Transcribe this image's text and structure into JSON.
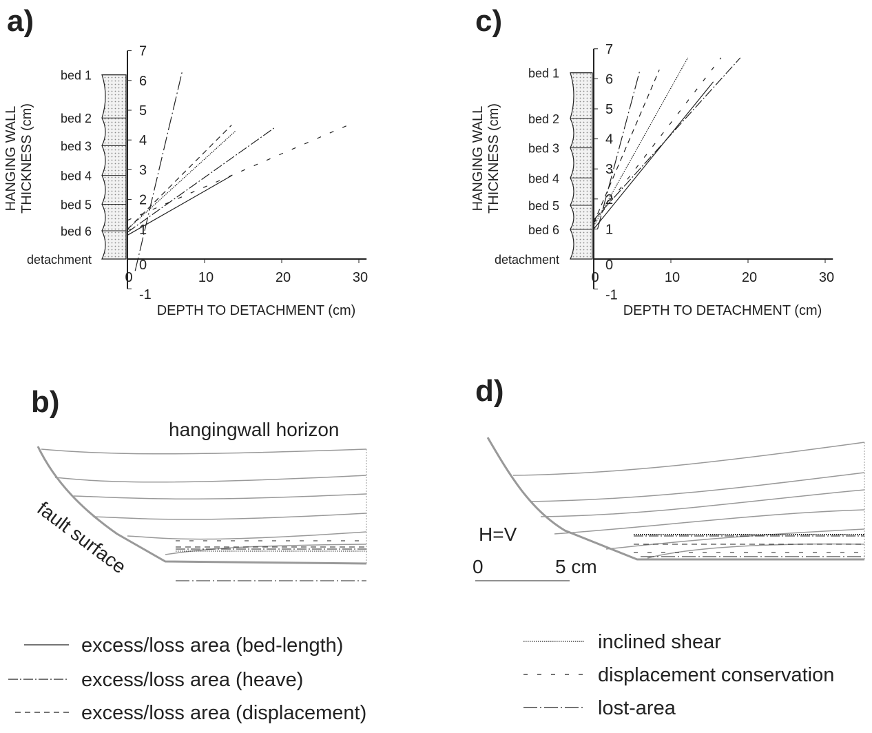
{
  "chart_data": [
    {
      "type": "line",
      "panel": "a)",
      "ylabel": [
        "HANGING WALL",
        "THICKNESS (cm)"
      ],
      "xlabel": "DEPTH TO DETACHMENT (cm)",
      "xlim": [
        0,
        31
      ],
      "ylim": [
        -1,
        7
      ],
      "xticks": [
        0,
        10,
        20,
        30
      ],
      "yticks": [
        -1,
        0,
        1,
        2,
        3,
        4,
        5,
        6,
        7
      ],
      "beds": [
        {
          "label": "bed 1",
          "value": 6.19
        },
        {
          "label": "bed 2",
          "value": 4.74
        },
        {
          "label": "bed 3",
          "value": 3.81
        },
        {
          "label": "bed 4",
          "value": 2.81
        },
        {
          "label": "bed 5",
          "value": 1.84
        },
        {
          "label": "bed 6",
          "value": 0.95
        },
        {
          "label": "detachment",
          "value": 0
        }
      ],
      "series": [
        {
          "style": "long-dash-dot",
          "x": [
            1,
            7.1
          ],
          "values": [
            -0.4,
            6.3
          ]
        },
        {
          "style": "dashed",
          "x": [
            0,
            13.5
          ],
          "values": [
            1.0,
            4.5
          ]
        },
        {
          "style": "dotted",
          "x": [
            0,
            14
          ],
          "values": [
            1.0,
            4.3
          ]
        },
        {
          "style": "dash-dot",
          "x": [
            0,
            19
          ],
          "values": [
            0.9,
            4.4
          ]
        },
        {
          "style": "sparse-dash",
          "x": [
            0,
            29.5
          ],
          "values": [
            1.3,
            4.6
          ]
        },
        {
          "style": "solid",
          "x": [
            0,
            13.5
          ],
          "values": [
            0.8,
            2.8
          ]
        }
      ]
    },
    {
      "type": "line",
      "panel": "c)",
      "ylabel": [
        "HANGING WALL",
        "THICKNESS (cm)"
      ],
      "xlabel": "DEPTH TO DETACHMENT (cm)",
      "xlim": [
        0,
        31
      ],
      "ylim": [
        -1,
        7
      ],
      "xticks": [
        0,
        10,
        20,
        30
      ],
      "yticks": [
        -1,
        0,
        1,
        2,
        3,
        4,
        5,
        6,
        7
      ],
      "beds": [
        {
          "label": "bed 1",
          "value": 6.2
        },
        {
          "label": "bed 2",
          "value": 4.68
        },
        {
          "label": "bed 3",
          "value": 3.7
        },
        {
          "label": "bed 4",
          "value": 2.7
        },
        {
          "label": "bed 5",
          "value": 1.79
        },
        {
          "label": "bed 6",
          "value": 0.99
        },
        {
          "label": "detachment",
          "value": 0
        }
      ],
      "series": [
        {
          "style": "long-dash-dot",
          "x": [
            0.5,
            6
          ],
          "values": [
            1.0,
            6.3
          ]
        },
        {
          "style": "dashed",
          "x": [
            0,
            8.5
          ],
          "values": [
            1.2,
            6.3
          ]
        },
        {
          "style": "dotted",
          "x": [
            0,
            12.2
          ],
          "values": [
            1.1,
            6.7
          ]
        },
        {
          "style": "sparse-dash",
          "x": [
            0,
            16.5
          ],
          "values": [
            1.2,
            6.7
          ]
        },
        {
          "style": "dash-dot",
          "x": [
            0,
            19
          ],
          "values": [
            1.3,
            6.7
          ]
        },
        {
          "style": "solid",
          "x": [
            0,
            15.5
          ],
          "values": [
            1.0,
            5.9
          ]
        }
      ]
    }
  ],
  "diagram_b": {
    "panel": "b)",
    "horizon_label": "hangingwall horizon",
    "fault_label": "fault surface"
  },
  "diagram_d": {
    "panel": "d)",
    "scale_note": "H=V",
    "scale_bar": [
      "0",
      "5 cm"
    ]
  },
  "legend": [
    {
      "label": "excess/loss area (bed-length)",
      "style": "solid"
    },
    {
      "label": "excess/loss area (heave)",
      "style": "dash-dot"
    },
    {
      "label": "excess/loss area (displacement)",
      "style": "dashed"
    },
    {
      "label": "inclined shear",
      "style": "dotted"
    },
    {
      "label": "displacement conservation",
      "style": "sparse-dash"
    },
    {
      "label": "lost-area",
      "style": "long-dash-dot"
    }
  ]
}
